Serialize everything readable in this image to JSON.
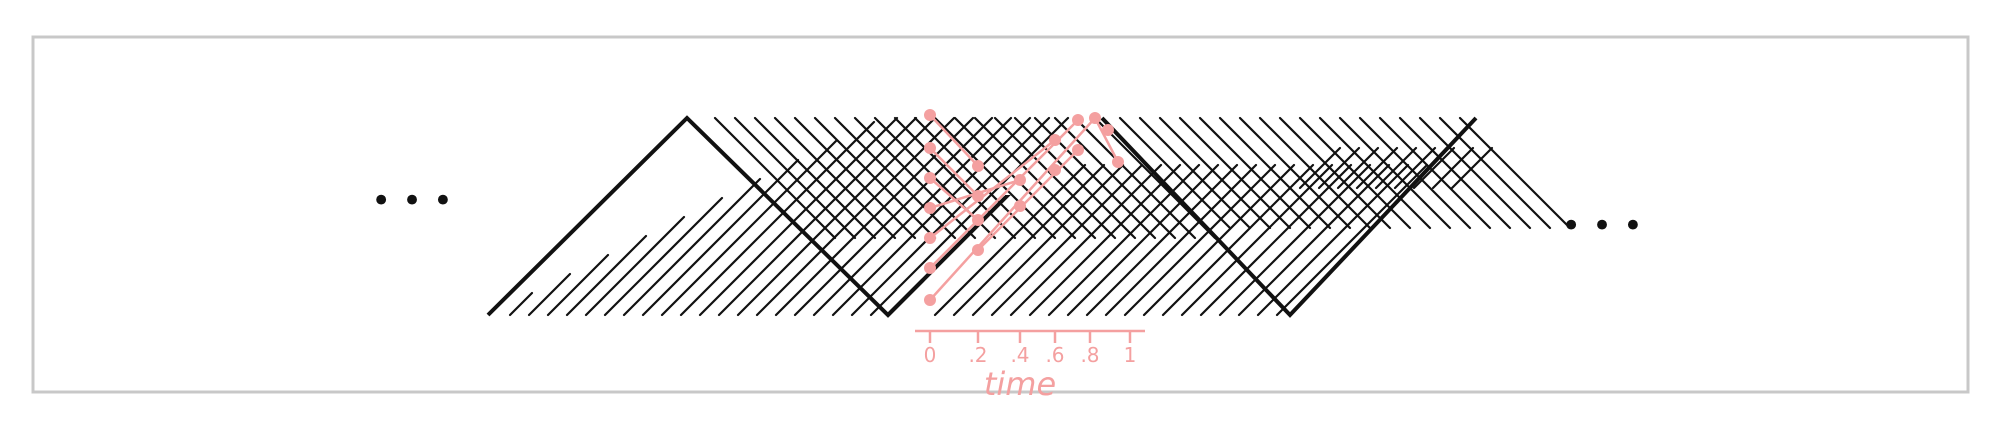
{
  "diagram": {
    "ellipsis_left": "• • •",
    "ellipsis_right": "• • •",
    "time_ticks": [
      "0",
      ".2",
      ".4",
      ".6",
      ".8",
      "1"
    ],
    "time_label": "time",
    "colors": {
      "frame": "#c8c8c8",
      "ink": "#111111",
      "annotation": "#f4a0a0"
    }
  }
}
